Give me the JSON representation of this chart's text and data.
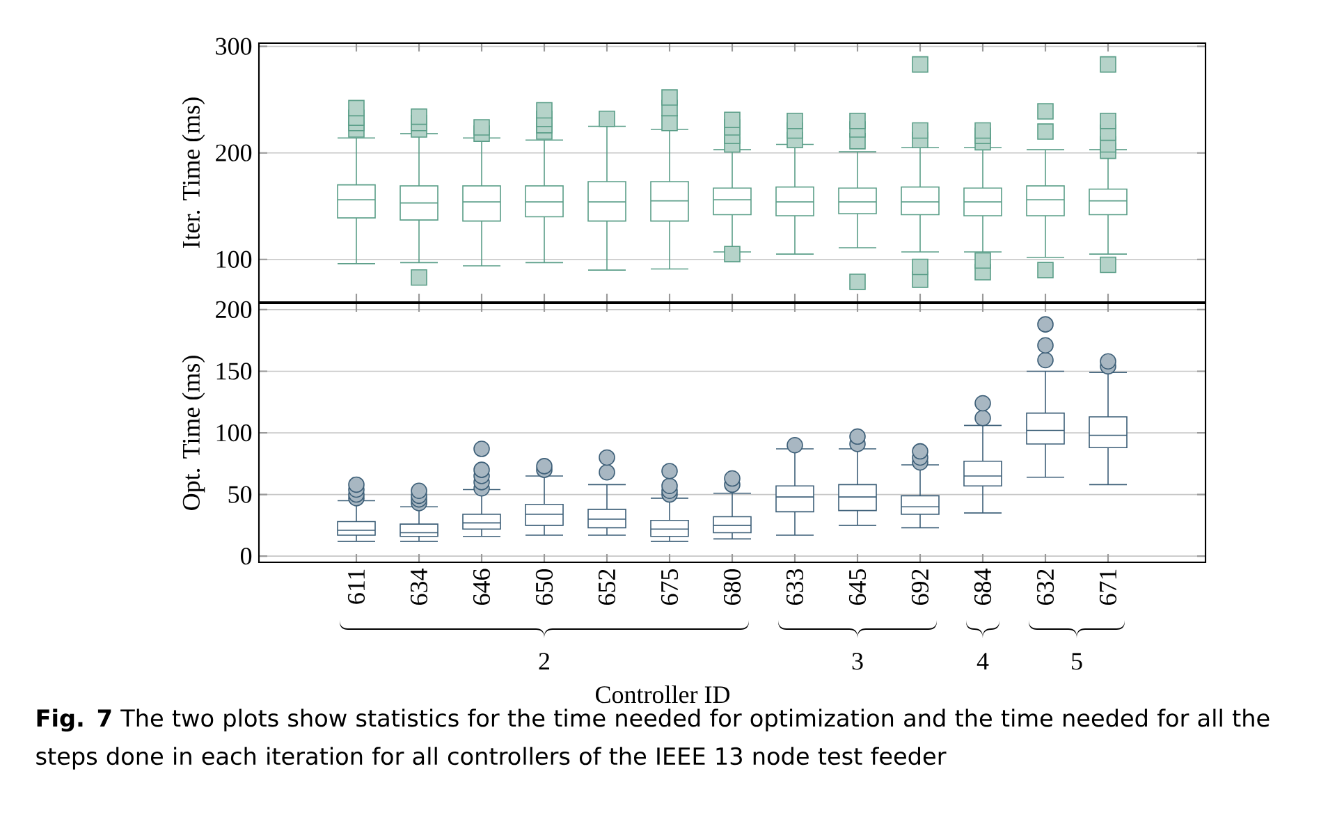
{
  "chart_data": [
    {
      "type": "box",
      "ylabel": "Iter. Time (ms)",
      "color": "#5a9e88",
      "marker": "square",
      "grid": "y",
      "tick_labels": "y",
      "categories": [
        "611",
        "634",
        "646",
        "650",
        "652",
        "675",
        "680",
        "633",
        "645",
        "692",
        "684",
        "632",
        "671"
      ],
      "ylim": [
        60,
        303
      ],
      "yticks": [
        100,
        200,
        300
      ],
      "boxes": [
        {
          "low": 96,
          "q1": 139,
          "median": 156,
          "q3": 170,
          "high": 214,
          "outliers": [
            222,
            228,
            233,
            242
          ]
        },
        {
          "low": 97,
          "q1": 137,
          "median": 153,
          "q3": 169,
          "high": 218,
          "outliers": [
            83,
            222,
            228,
            234
          ]
        },
        {
          "low": 94,
          "q1": 136,
          "median": 154,
          "q3": 169,
          "high": 214,
          "outliers": [
            218,
            224
          ]
        },
        {
          "low": 97,
          "q1": 140,
          "median": 154,
          "q3": 169,
          "high": 212,
          "outliers": [
            220,
            226,
            232,
            240
          ]
        },
        {
          "low": 90,
          "q1": 136,
          "median": 154,
          "q3": 173,
          "high": 225,
          "outliers": [
            232
          ]
        },
        {
          "low": 91,
          "q1": 136,
          "median": 155,
          "q3": 173,
          "high": 222,
          "outliers": [
            228,
            242,
            252
          ]
        },
        {
          "low": 107,
          "q1": 142,
          "median": 156,
          "q3": 167,
          "high": 203,
          "outliers": [
            105,
            208,
            216,
            224,
            231
          ]
        },
        {
          "low": 105,
          "q1": 141,
          "median": 154,
          "q3": 168,
          "high": 208,
          "outliers": [
            212,
            221,
            230
          ]
        },
        {
          "low": 111,
          "q1": 143,
          "median": 154,
          "q3": 167,
          "high": 201,
          "outliers": [
            79,
            211,
            222,
            230
          ]
        },
        {
          "low": 107,
          "q1": 142,
          "median": 154,
          "q3": 168,
          "high": 205,
          "outliers": [
            81,
            93,
            212,
            221,
            283
          ]
        },
        {
          "low": 107,
          "q1": 141,
          "median": 154,
          "q3": 167,
          "high": 205,
          "outliers": [
            88,
            99,
            210,
            216,
            221
          ]
        },
        {
          "low": 102,
          "q1": 141,
          "median": 156,
          "q3": 169,
          "high": 203,
          "outliers": [
            90,
            220,
            239
          ]
        },
        {
          "low": 105,
          "q1": 142,
          "median": 155,
          "q3": 166,
          "high": 203,
          "outliers": [
            95,
            202,
            208,
            219,
            230,
            283
          ]
        }
      ]
    },
    {
      "type": "box",
      "ylabel": "Opt. Time (ms)",
      "xlabel": "Controller ID",
      "color": "#3d5f78",
      "marker": "circle",
      "grid": "y",
      "categories": [
        "611",
        "634",
        "646",
        "650",
        "652",
        "675",
        "680",
        "633",
        "645",
        "692",
        "684",
        "632",
        "671"
      ],
      "ylim": [
        -5,
        205
      ],
      "yticks": [
        0,
        50,
        100,
        150,
        200
      ],
      "boxes": [
        {
          "low": 12,
          "q1": 17,
          "median": 21,
          "q3": 28,
          "high": 45,
          "outliers": [
            47,
            50,
            54,
            58
          ]
        },
        {
          "low": 12,
          "q1": 16,
          "median": 19,
          "q3": 26,
          "high": 40,
          "outliers": [
            43,
            46,
            49,
            53
          ]
        },
        {
          "low": 16,
          "q1": 22,
          "median": 27,
          "q3": 34,
          "high": 54,
          "outliers": [
            55,
            60,
            65,
            70,
            87
          ]
        },
        {
          "low": 17,
          "q1": 25,
          "median": 34,
          "q3": 42,
          "high": 65,
          "outliers": [
            70,
            73
          ]
        },
        {
          "low": 17,
          "q1": 23,
          "median": 30,
          "q3": 38,
          "high": 58,
          "outliers": [
            68,
            80
          ]
        },
        {
          "low": 12,
          "q1": 16,
          "median": 22,
          "q3": 29,
          "high": 47,
          "outliers": [
            50,
            53,
            57,
            69
          ]
        },
        {
          "low": 14,
          "q1": 19,
          "median": 25,
          "q3": 32,
          "high": 51,
          "outliers": [
            58,
            63
          ]
        },
        {
          "low": 17,
          "q1": 36,
          "median": 48,
          "q3": 57,
          "high": 87,
          "outliers": [
            90
          ]
        },
        {
          "low": 25,
          "q1": 37,
          "median": 48,
          "q3": 58,
          "high": 87,
          "outliers": [
            91,
            97
          ]
        },
        {
          "low": 23,
          "q1": 34,
          "median": 40,
          "q3": 49,
          "high": 74,
          "outliers": [
            76,
            80,
            85
          ]
        },
        {
          "low": 35,
          "q1": 57,
          "median": 65,
          "q3": 77,
          "high": 106,
          "outliers": [
            112,
            124
          ]
        },
        {
          "low": 64,
          "q1": 91,
          "median": 102,
          "q3": 116,
          "high": 150,
          "outliers": [
            159,
            171,
            188
          ]
        },
        {
          "low": 58,
          "q1": 88,
          "median": 98,
          "q3": 113,
          "high": 149,
          "outliers": [
            154,
            158
          ]
        }
      ],
      "annotations": [
        "2",
        "3",
        "4",
        "5",
        "**Fig. 7** The two plots show statistics for the time needed for optimization and the time needed for all the steps done in each iteration for all controllers of the IEEE 13 node test feeder"
      ]
    }
  ]
}
